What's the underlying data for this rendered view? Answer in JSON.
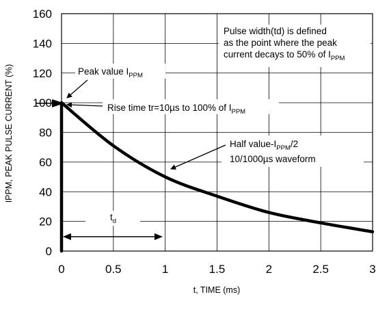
{
  "chart_data": {
    "type": "line",
    "xlabel": "t, TIME (ms)",
    "ylabel": "IPPM, PEAK PULSE CURRENT (%)",
    "xlim": [
      0,
      3
    ],
    "ylim": [
      0,
      160
    ],
    "x_ticks": [
      "0",
      "0.5",
      "1",
      "1.5",
      "2",
      "2.5",
      "3"
    ],
    "y_ticks": [
      "0",
      "20",
      "40",
      "60",
      "80",
      "100",
      "120",
      "140",
      "160"
    ],
    "grid": true,
    "series": [
      {
        "x": [
          0,
          0,
          0.5,
          1,
          1.5,
          2,
          2.5,
          3
        ],
        "values": [
          0,
          100,
          71,
          50,
          37,
          26,
          19,
          13
        ]
      }
    ],
    "annotations": {
      "pulse_width_note": [
        "Pulse width(td) is defined",
        "as the point where the peak",
        "current decays to 50% of I",
        "PPM"
      ],
      "peak_value": [
        "Peak value I",
        "PPM"
      ],
      "rise_time": [
        "Rise time tr=10µs to 100% of I",
        "PPM"
      ],
      "half_value": [
        "Half value-I",
        "PPM",
        "/2"
      ],
      "waveform": "10/1000µs waveform",
      "td": [
        "t",
        "d"
      ]
    }
  }
}
